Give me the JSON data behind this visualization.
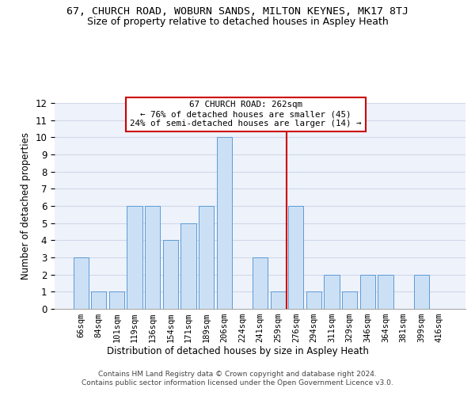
{
  "title_line1": "67, CHURCH ROAD, WOBURN SANDS, MILTON KEYNES, MK17 8TJ",
  "title_line2": "Size of property relative to detached houses in Aspley Heath",
  "xlabel": "Distribution of detached houses by size in Aspley Heath",
  "ylabel": "Number of detached properties",
  "categories": [
    "66sqm",
    "84sqm",
    "101sqm",
    "119sqm",
    "136sqm",
    "154sqm",
    "171sqm",
    "189sqm",
    "206sqm",
    "224sqm",
    "241sqm",
    "259sqm",
    "276sqm",
    "294sqm",
    "311sqm",
    "329sqm",
    "346sqm",
    "364sqm",
    "381sqm",
    "399sqm",
    "416sqm"
  ],
  "values": [
    3,
    1,
    1,
    6,
    6,
    4,
    5,
    6,
    10,
    0,
    3,
    1,
    6,
    1,
    2,
    1,
    2,
    2,
    0,
    2,
    0
  ],
  "bar_color": "#cce0f5",
  "bar_edge_color": "#5b9bd5",
  "grid_color": "#d0d8e8",
  "background_color": "#eef2fb",
  "annotation_text": "67 CHURCH ROAD: 262sqm\n← 76% of detached houses are smaller (45)\n24% of semi-detached houses are larger (14) →",
  "annotation_box_color": "#ffffff",
  "annotation_box_edge": "#cc0000",
  "vline_x": 11.5,
  "vline_color": "#cc0000",
  "ylim": [
    0,
    12
  ],
  "yticks": [
    0,
    1,
    2,
    3,
    4,
    5,
    6,
    7,
    8,
    9,
    10,
    11,
    12
  ],
  "footer": "Contains HM Land Registry data © Crown copyright and database right 2024.\nContains public sector information licensed under the Open Government Licence v3.0."
}
